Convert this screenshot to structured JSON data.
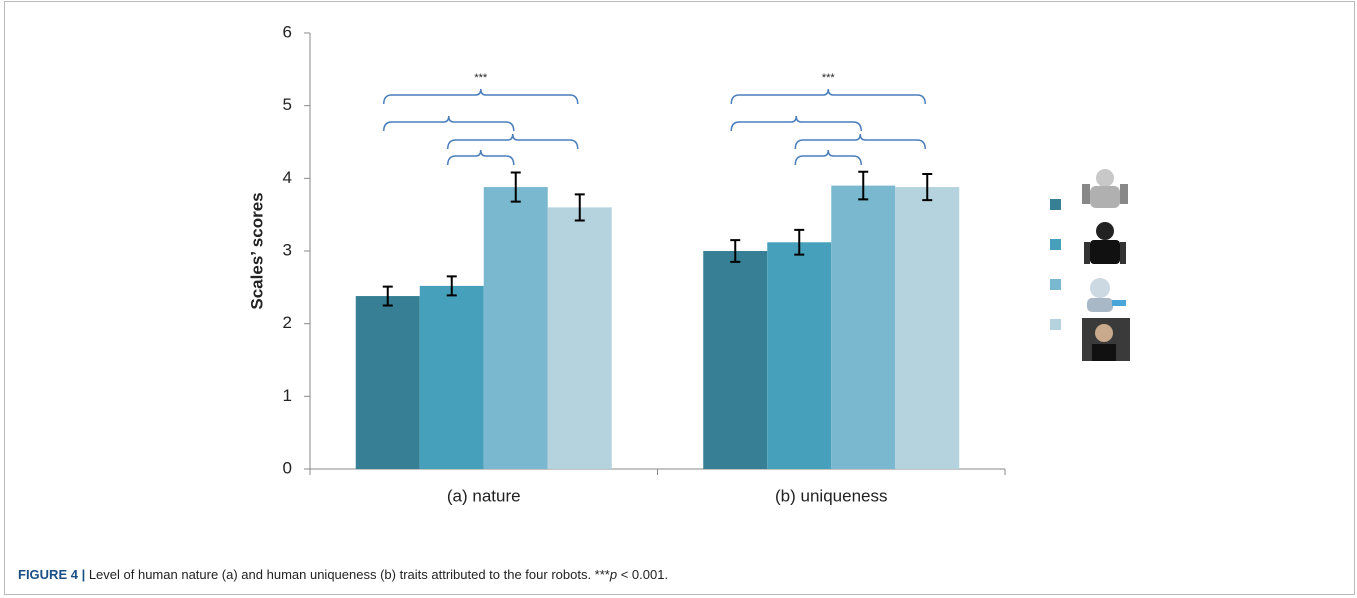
{
  "chart_data": {
    "type": "bar",
    "y_label": "Scales’ scores",
    "categories": [
      "(a) nature",
      "(b) uniqueness"
    ],
    "series": [
      {
        "color": "#367f94",
        "values": [
          2.38,
          3.0
        ],
        "errors": [
          0.13,
          0.15
        ]
      },
      {
        "color": "#46a0bb",
        "values": [
          2.52,
          3.12
        ],
        "errors": [
          0.13,
          0.17
        ]
      },
      {
        "color": "#7ab8cf",
        "values": [
          3.88,
          3.9
        ],
        "errors": [
          0.2,
          0.19
        ]
      },
      {
        "color": "#b5d3de",
        "values": [
          3.6,
          3.88
        ],
        "errors": [
          0.18,
          0.18
        ]
      }
    ],
    "annotations": [
      "***",
      "***"
    ],
    "ylim": [
      0,
      6
    ],
    "yticks": [
      0,
      1,
      2,
      3,
      4,
      5,
      6
    ],
    "grid": false
  },
  "caption": {
    "label": "FIGURE 4 |",
    "parts": [
      "Level of human nature (a) and human uniqueness (b) traits attributed to the four robots. ***",
      "p",
      " < 0.001."
    ]
  }
}
